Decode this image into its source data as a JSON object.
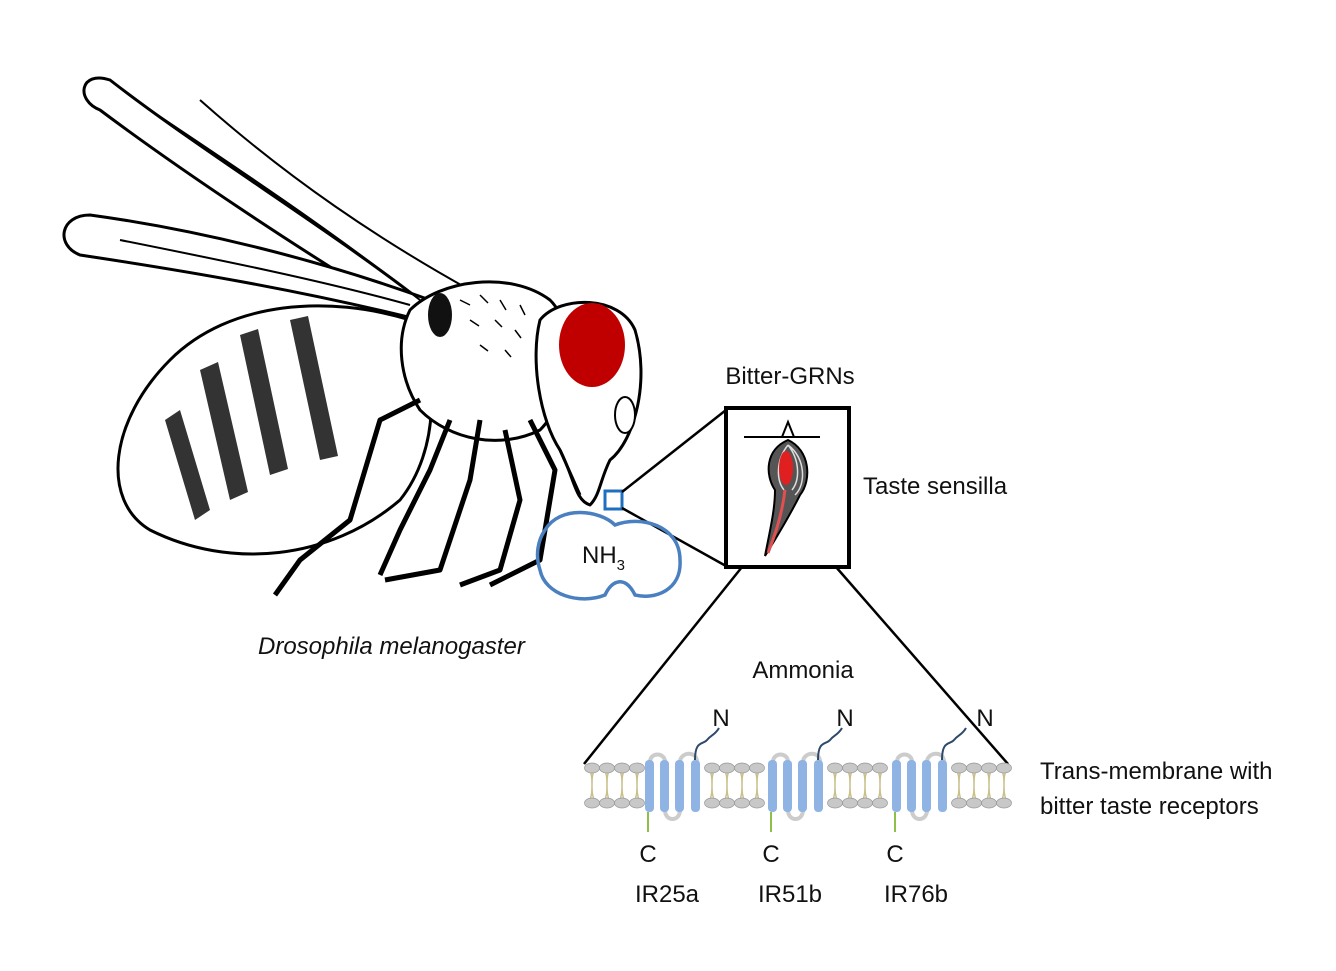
{
  "species_label": "Drosophila melanogaster",
  "chemical": {
    "base": "NH",
    "subscript": "3"
  },
  "neuron_label": "Bitter-GRNs",
  "sensilla_label": "Taste sensilla",
  "ligand_label": "Ammonia",
  "membrane_label": [
    "Trans-membrane with",
    "bitter taste receptors"
  ],
  "receptors": [
    {
      "name": "IR25a",
      "n_term": "N",
      "c_term": "C"
    },
    {
      "name": "IR51b",
      "n_term": "N",
      "c_term": "C"
    },
    {
      "name": "IR76b",
      "n_term": "N",
      "c_term": "C"
    }
  ],
  "colors": {
    "eye": "#c00000",
    "highlight": "#1f6fc0",
    "receptor": "#8fb4e3",
    "lipid_head": "#c8c8c8",
    "lipid_tail": "#c9c08a",
    "neuron": "#e02020",
    "c_tail": "#8cc04a"
  }
}
